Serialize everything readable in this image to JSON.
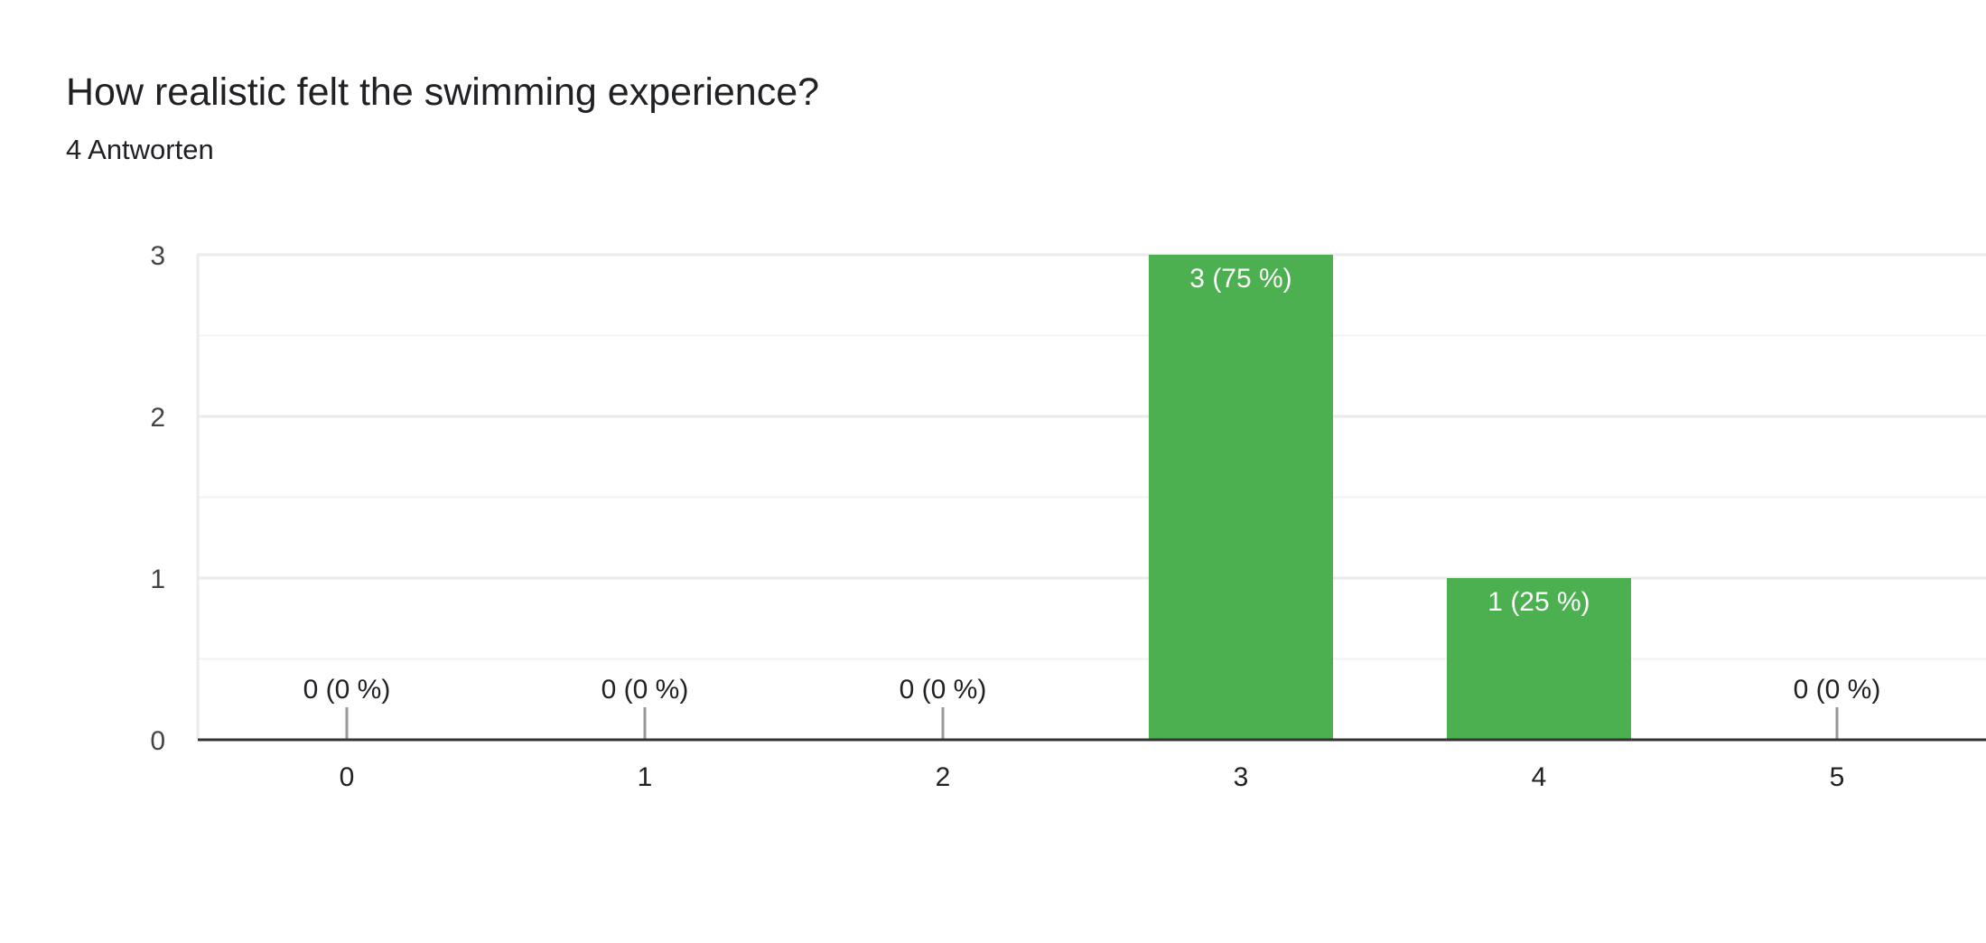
{
  "chart_data": {
    "type": "bar",
    "title": "How realistic felt the swimming experience?",
    "subtitle": "4 Antworten",
    "categories": [
      "0",
      "1",
      "2",
      "3",
      "4",
      "5"
    ],
    "values": [
      0,
      0,
      0,
      3,
      1,
      0
    ],
    "data_labels": [
      "0 (0 %)",
      "0 (0 %)",
      "0 (0 %)",
      "3 (75 %)",
      "1 (25 %)",
      "0 (0 %)"
    ],
    "ylim": [
      0,
      3
    ],
    "yticks": [
      "0",
      "1",
      "2",
      "3"
    ],
    "xlabel": "",
    "ylabel": "",
    "grid": true,
    "bar_color": "#4caf50"
  }
}
